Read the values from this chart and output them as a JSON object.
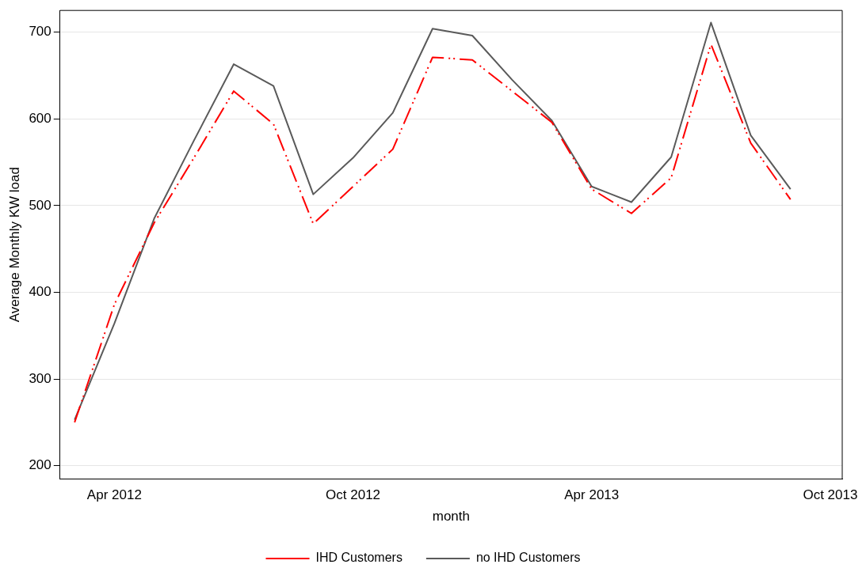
{
  "chart_data": {
    "type": "line",
    "xlabel": "month",
    "ylabel": "Average Monthly KW load",
    "x": [
      "2012-03",
      "2012-04",
      "2012-05",
      "2012-06",
      "2012-07",
      "2012-08",
      "2012-09",
      "2012-10",
      "2012-11",
      "2012-12",
      "2013-01",
      "2013-02",
      "2013-03",
      "2013-04",
      "2013-05",
      "2013-06",
      "2013-07",
      "2013-08",
      "2013-09"
    ],
    "series": [
      {
        "name": "IHD Customers",
        "color": "#ff0000",
        "line_style": "dashed",
        "values": [
          250,
          386,
          480,
          555,
          632,
          594,
          479,
          522,
          565,
          671,
          668,
          632,
          596,
          519,
          491,
          532,
          686,
          572,
          507
        ]
      },
      {
        "name": "no IHD Customers",
        "color": "#5a5a5a",
        "line_style": "solid",
        "values": [
          253,
          364,
          485,
          575,
          663,
          638,
          513,
          555,
          607,
          704,
          696,
          645,
          598,
          522,
          504,
          556,
          711,
          581,
          519
        ]
      }
    ],
    "xlim": [
      "2012-02-20",
      "2013-10-10"
    ],
    "xticks": [
      {
        "value": "2012-04",
        "label": "Apr 2012"
      },
      {
        "value": "2012-10",
        "label": "Oct 2012"
      },
      {
        "value": "2013-04",
        "label": "Apr 2013"
      },
      {
        "value": "2013-10",
        "label": "Oct 2013"
      }
    ],
    "ylim": [
      185,
      725
    ],
    "yticks": [
      200,
      300,
      400,
      500,
      600,
      700
    ],
    "grid": "y",
    "legend": "bottom",
    "marker": "none"
  }
}
